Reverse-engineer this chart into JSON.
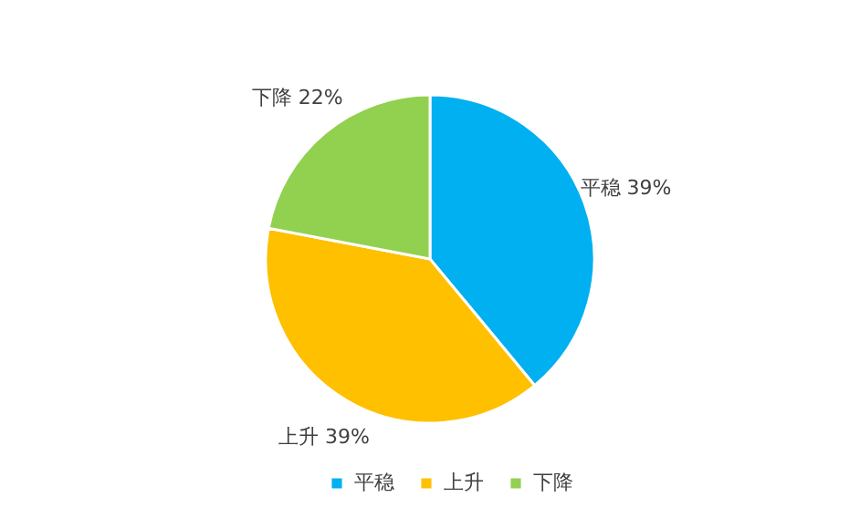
{
  "chart_data": {
    "type": "pie",
    "categories": [
      "平稳",
      "上升",
      "下降"
    ],
    "values": [
      39,
      39,
      22
    ],
    "colors": [
      "#00b0f0",
      "#ffc000",
      "#92d050"
    ],
    "value_labels": [
      "39%",
      "39%",
      "22%"
    ],
    "legend": "bottom"
  }
}
